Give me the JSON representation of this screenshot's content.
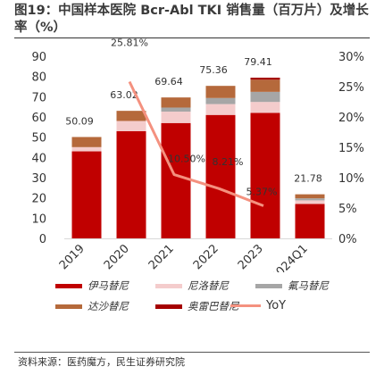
{
  "title": "图19：中国样本医院 Bcr-Abl TKI 销售量（百万片）及增长率（%）",
  "source": "资料来源：医药魔方，民生证券研究院",
  "colors": {
    "yima": "#c00000",
    "niluo": "#f4cccc",
    "qima": "#a6a6a6",
    "dasha": "#b5693b",
    "aolei": "#a50000",
    "yoy": "#f4917f"
  },
  "chart_data": {
    "type": "bar",
    "stacked": true,
    "categories": [
      "2019",
      "2020",
      "2021",
      "2022",
      "2023",
      "2024Q1"
    ],
    "totals": [
      50.09,
      63.02,
      69.64,
      75.36,
      79.41,
      21.78
    ],
    "series": [
      {
        "name": "伊马替尼",
        "color": "#c00000",
        "values": [
          43,
          53,
          57,
          61,
          62,
          17
        ]
      },
      {
        "name": "尼洛替尼",
        "color": "#f4cccc",
        "values": [
          2.09,
          5.02,
          5.64,
          5.36,
          5.41,
          1.78
        ]
      },
      {
        "name": "氟马替尼",
        "color": "#a6a6a6",
        "values": [
          0,
          0,
          2,
          3,
          5,
          1
        ]
      },
      {
        "name": "达沙替尼",
        "color": "#b5693b",
        "values": [
          5,
          5,
          5,
          6,
          6,
          2
        ]
      },
      {
        "name": "奥雷巴替尼",
        "color": "#a50000",
        "values": [
          0,
          0,
          0,
          0,
          1,
          0
        ]
      }
    ],
    "line": {
      "name": "YoY",
      "color": "#f4917f",
      "values": [
        null,
        25.81,
        10.5,
        8.21,
        5.37,
        null
      ],
      "labels": [
        "",
        "25.81%",
        "10.50%",
        "8.21%",
        "5.37%",
        ""
      ]
    },
    "y_left": {
      "min": 0,
      "max": 90,
      "step": 10,
      "ticks": [
        "0",
        "10",
        "20",
        "30",
        "40",
        "50",
        "60",
        "70",
        "80",
        "90"
      ]
    },
    "y_right": {
      "min": 0,
      "max": 30,
      "step": 5,
      "ticks": [
        "0%",
        "5%",
        "10%",
        "15%",
        "20%",
        "25%",
        "30%"
      ]
    },
    "legend": [
      {
        "name": "伊马替尼",
        "color": "#c00000",
        "kind": "bar"
      },
      {
        "name": "尼洛替尼",
        "color": "#f4cccc",
        "kind": "bar"
      },
      {
        "name": "氟马替尼",
        "color": "#a6a6a6",
        "kind": "bar"
      },
      {
        "name": "达沙替尼",
        "color": "#b5693b",
        "kind": "bar"
      },
      {
        "name": "奥雷巴替尼",
        "color": "#a50000",
        "kind": "bar"
      },
      {
        "name": "YoY",
        "color": "#f4917f",
        "kind": "line"
      }
    ],
    "legend_position": "bottom"
  }
}
